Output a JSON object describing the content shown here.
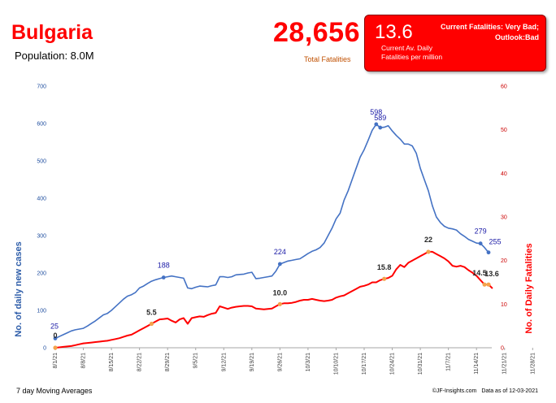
{
  "header": {
    "country": "Bulgaria",
    "population": "Population: 8.0M",
    "total_fatalities": "28,656",
    "total_fatalities_label": "Total Fatalities"
  },
  "status_box": {
    "value": "13.6",
    "status_line1": "Current Fatalities: Very Bad;",
    "status_line2": "Outlook:Bad",
    "label_line1": "Current Av. Daily",
    "label_line2": "Fatalities per million"
  },
  "footer": {
    "left": "7 day Moving Averages",
    "source": "©JF-Insights.com",
    "date": "Data as of 12-03-2021"
  },
  "colors": {
    "cases": "#4472c4",
    "deaths": "#ff0000",
    "accent": "#ff0000"
  },
  "chart_data": {
    "type": "line",
    "x_tick_labels": [
      "8/1/21",
      "8/8/21",
      "8/15/21",
      "8/22/21",
      "8/29/21",
      "9/5/21",
      "9/12/21",
      "9/19/21",
      "9/26/21",
      "10/3/21",
      "10/10/21",
      "10/17/21",
      "10/24/21",
      "10/31/21",
      "11/7/21",
      "11/14/21",
      "11/21/21",
      "11/28/21"
    ],
    "y_left": {
      "label": "No. of daily new  cases",
      "ticks": [
        "0",
        "100",
        "200",
        "300",
        "400",
        "500",
        "600",
        "700"
      ],
      "range": [
        0,
        700
      ]
    },
    "y_right": {
      "label": "No. of Daily Fatalities",
      "ticks": [
        "0",
        "10",
        "20",
        "30",
        "40",
        "50",
        "60"
      ],
      "range": [
        0,
        60
      ]
    },
    "grid": false,
    "series": [
      {
        "name": "No. of daily new  cases",
        "axis": "left",
        "color": "#4472c4",
        "values": [
          25,
          30,
          35,
          40,
          45,
          48,
          50,
          52,
          58,
          65,
          72,
          80,
          88,
          92,
          100,
          110,
          120,
          130,
          138,
          142,
          148,
          160,
          165,
          172,
          178,
          182,
          185,
          188,
          190,
          192,
          190,
          188,
          186,
          160,
          158,
          162,
          165,
          164,
          163,
          166,
          168,
          190,
          190,
          188,
          190,
          195,
          196,
          197,
          200,
          202,
          185,
          186,
          188,
          190,
          192,
          205,
          224,
          228,
          232,
          234,
          236,
          238,
          245,
          252,
          258,
          262,
          268,
          280,
          300,
          320,
          345,
          360,
          395,
          420,
          450,
          480,
          510,
          530,
          555,
          582,
          598,
          589,
          590,
          594,
          580,
          568,
          558,
          545,
          545,
          540,
          520,
          480,
          450,
          420,
          380,
          350,
          335,
          325,
          320,
          318,
          315,
          305,
          298,
          290,
          285,
          280,
          279,
          268,
          255
        ]
      },
      {
        "name": "No. of Daily Fatalities",
        "axis": "right",
        "color": "#ff0000",
        "values": [
          0,
          0.1,
          0.2,
          0.3,
          0.4,
          0.6,
          0.8,
          1,
          1.1,
          1.2,
          1.3,
          1.4,
          1.5,
          1.6,
          1.8,
          2,
          2.2,
          2.5,
          2.8,
          3,
          3.5,
          4,
          4.5,
          5,
          5.5,
          6,
          6.5,
          6.6,
          6.7,
          6.2,
          5.8,
          6.5,
          6.8,
          5.5,
          6.8,
          7,
          7.2,
          7.1,
          7.5,
          7.8,
          8,
          9.5,
          9.2,
          8.9,
          9.2,
          9.4,
          9.5,
          9.6,
          9.6,
          9.5,
          9,
          8.9,
          8.8,
          8.9,
          9,
          9.5,
          10,
          10.2,
          10.2,
          10.3,
          10.5,
          10.8,
          11,
          11,
          11.2,
          11,
          10.8,
          10.7,
          10.8,
          11,
          11.5,
          11.8,
          12,
          12.5,
          13,
          13.5,
          14,
          14.2,
          14.5,
          15,
          15,
          15.5,
          15.8,
          16,
          16.5,
          18,
          19,
          18.5,
          19.5,
          20,
          20.5,
          21,
          21.5,
          22,
          22,
          21.5,
          21,
          20.5,
          19.8,
          18.8,
          18.6,
          18.8,
          18.5,
          17.8,
          17.2,
          16.5,
          15.5,
          14.5,
          14.5,
          13.6
        ]
      }
    ],
    "annotations_cases": [
      "25",
      "188",
      "224",
      "598",
      "589",
      "279",
      "255"
    ],
    "annotations_deaths": [
      "0",
      "5.5",
      "10.0",
      "15.8",
      "22",
      "14.5",
      "13.6"
    ]
  }
}
